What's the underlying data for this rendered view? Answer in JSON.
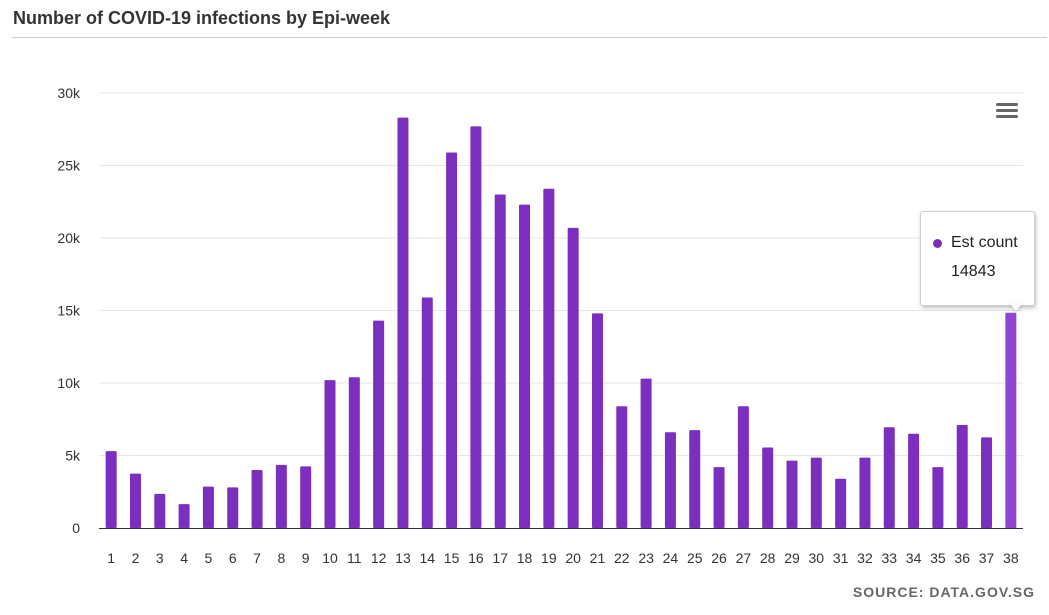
{
  "page": {
    "title": "Number of COVID-19 infections by Epi-week",
    "source": "SOURCE: DATA.GOV.SG"
  },
  "colors": {
    "bar": "#7B2FBF",
    "bar_hover": "#9145D6",
    "grid": "#e6e6e6",
    "axis": "#333333"
  },
  "chart_data": {
    "type": "bar",
    "title": "Number of COVID-19 infections by Epi-week",
    "xlabel": "",
    "ylabel": "",
    "categories": [
      "1",
      "2",
      "3",
      "4",
      "5",
      "6",
      "7",
      "8",
      "9",
      "10",
      "11",
      "12",
      "13",
      "14",
      "15",
      "16",
      "17",
      "18",
      "19",
      "20",
      "21",
      "22",
      "23",
      "24",
      "25",
      "26",
      "27",
      "28",
      "29",
      "30",
      "31",
      "32",
      "33",
      "34",
      "35",
      "36",
      "37",
      "38"
    ],
    "series": [
      {
        "values": [
          5300,
          3750,
          2350,
          1650,
          2850,
          2800,
          4000,
          4350,
          4250,
          10200,
          10400,
          14300,
          28300,
          15900,
          25900,
          27700,
          23000,
          22300,
          23400,
          20700,
          14800,
          8400,
          10300,
          6600,
          6750,
          4200,
          8400,
          5550,
          4650,
          4850,
          3400,
          4850,
          6950,
          6500,
          4200,
          7100,
          6250,
          14843
        ]
      }
    ],
    "ylim": [
      0,
      30000
    ],
    "y_ticks": [
      {
        "value": 0,
        "label": "0"
      },
      {
        "value": 5000,
        "label": "5k"
      },
      {
        "value": 10000,
        "label": "10k"
      },
      {
        "value": 15000,
        "label": "15k"
      },
      {
        "value": 20000,
        "label": "20k"
      },
      {
        "value": 25000,
        "label": "25k"
      },
      {
        "value": 30000,
        "label": "30k"
      }
    ],
    "grid": true,
    "legend": "none",
    "highlighted_index": 37
  },
  "tooltip": {
    "series_label": "Est count",
    "value": "14843"
  },
  "menu": {
    "icon": "hamburger-menu-icon"
  }
}
